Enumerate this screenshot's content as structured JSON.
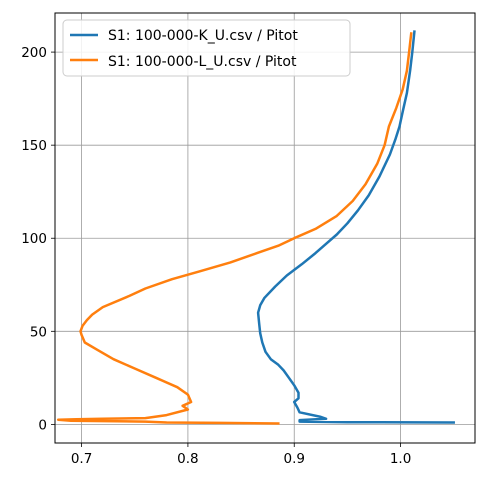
{
  "chart_data": {
    "type": "line",
    "title": "",
    "xlabel": "",
    "ylabel": "",
    "xlim": [
      0.675,
      1.07
    ],
    "ylim": [
      -10,
      221
    ],
    "xticks": [
      0.7,
      0.8,
      0.9,
      1.0
    ],
    "xtick_labels": [
      "0.7",
      "0.8",
      "0.9",
      "1.0"
    ],
    "yticks": [
      0,
      50,
      100,
      150,
      200
    ],
    "ytick_labels": [
      "0",
      "50",
      "100",
      "150",
      "200"
    ],
    "grid": true,
    "legend_position": "top-left",
    "series": [
      {
        "name": "S1: 100-000-K_U.csv / Pitot",
        "color": "#1f77b4",
        "points": [
          [
            1.05,
            1
          ],
          [
            0.95,
            1.2
          ],
          [
            0.905,
            1.5
          ],
          [
            0.905,
            2
          ],
          [
            0.905,
            2.3
          ],
          [
            0.93,
            3
          ],
          [
            0.925,
            4
          ],
          [
            0.905,
            6.5
          ],
          [
            0.903,
            9
          ],
          [
            0.9,
            12
          ],
          [
            0.904,
            14
          ],
          [
            0.904,
            17
          ],
          [
            0.9,
            21
          ],
          [
            0.895,
            25
          ],
          [
            0.89,
            29
          ],
          [
            0.885,
            32
          ],
          [
            0.878,
            35
          ],
          [
            0.873,
            39
          ],
          [
            0.87,
            44
          ],
          [
            0.868,
            49
          ],
          [
            0.867,
            54
          ],
          [
            0.866,
            60
          ],
          [
            0.868,
            64
          ],
          [
            0.872,
            68
          ],
          [
            0.882,
            74
          ],
          [
            0.893,
            80
          ],
          [
            0.907,
            86
          ],
          [
            0.92,
            92
          ],
          [
            0.93,
            97
          ],
          [
            0.94,
            102
          ],
          [
            0.95,
            108
          ],
          [
            0.96,
            115
          ],
          [
            0.97,
            123
          ],
          [
            0.98,
            133
          ],
          [
            0.99,
            145
          ],
          [
            0.995,
            153
          ],
          [
            0.999,
            160
          ],
          [
            1.002,
            168
          ],
          [
            1.006,
            178
          ],
          [
            1.009,
            190
          ],
          [
            1.011,
            200
          ],
          [
            1.013,
            211
          ]
        ]
      },
      {
        "name": "S1: 100-000-L_U.csv / Pitot",
        "color": "#ff7f0e",
        "points": [
          [
            0.885,
            0.5
          ],
          [
            0.83,
            0.8
          ],
          [
            0.78,
            1
          ],
          [
            0.76,
            1.5
          ],
          [
            0.69,
            2
          ],
          [
            0.678,
            2.5
          ],
          [
            0.695,
            2.8
          ],
          [
            0.72,
            3
          ],
          [
            0.76,
            3.4
          ],
          [
            0.78,
            5
          ],
          [
            0.8,
            8
          ],
          [
            0.795,
            10
          ],
          [
            0.803,
            12
          ],
          [
            0.8,
            16
          ],
          [
            0.79,
            20
          ],
          [
            0.77,
            25
          ],
          [
            0.75,
            30
          ],
          [
            0.73,
            35
          ],
          [
            0.715,
            40
          ],
          [
            0.703,
            44
          ],
          [
            0.7,
            48
          ],
          [
            0.699,
            50
          ],
          [
            0.701,
            53
          ],
          [
            0.705,
            56
          ],
          [
            0.71,
            59
          ],
          [
            0.72,
            63
          ],
          [
            0.745,
            69
          ],
          [
            0.76,
            73
          ],
          [
            0.785,
            78
          ],
          [
            0.81,
            82
          ],
          [
            0.84,
            87
          ],
          [
            0.865,
            92
          ],
          [
            0.885,
            96
          ],
          [
            0.9,
            100
          ],
          [
            0.92,
            105
          ],
          [
            0.94,
            112
          ],
          [
            0.955,
            120
          ],
          [
            0.967,
            129
          ],
          [
            0.978,
            140
          ],
          [
            0.985,
            150
          ],
          [
            0.989,
            160
          ],
          [
            0.996,
            170
          ],
          [
            1.002,
            180
          ],
          [
            1.006,
            190
          ],
          [
            1.008,
            200
          ],
          [
            1.01,
            210
          ]
        ]
      }
    ]
  }
}
